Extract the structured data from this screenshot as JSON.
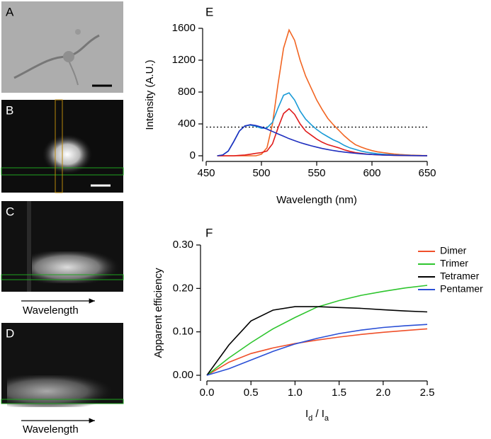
{
  "panels": {
    "labels": [
      "A",
      "B",
      "C",
      "D"
    ],
    "arrow_label": "Wavelength"
  },
  "chart_data": [
    {
      "type": "line",
      "panel_label": "E",
      "x_label": "Wavelength (nm)",
      "y_label": "Intensity (A.U.)",
      "xlim": [
        450,
        650
      ],
      "xticks": [
        450,
        500,
        550,
        600,
        650
      ],
      "ylim": [
        0,
        1600
      ],
      "yticks": [
        0,
        400,
        800,
        1200,
        1600
      ],
      "reference_line": {
        "value": 360,
        "color": "#000000"
      },
      "x": [
        460,
        465,
        470,
        475,
        480,
        485,
        490,
        495,
        500,
        505,
        510,
        515,
        520,
        525,
        530,
        535,
        540,
        545,
        550,
        555,
        560,
        565,
        570,
        575,
        580,
        585,
        590,
        595,
        600,
        605,
        610,
        615,
        620,
        625,
        630,
        635,
        640,
        645,
        650
      ],
      "series": [
        {
          "color": "#f26522",
          "values": [
            0,
            0,
            0,
            0,
            0,
            0,
            0,
            0,
            20,
            100,
            400,
            900,
            1350,
            1580,
            1450,
            1200,
            1000,
            850,
            700,
            580,
            470,
            390,
            320,
            250,
            190,
            140,
            110,
            85,
            65,
            50,
            40,
            30,
            22,
            16,
            12,
            8,
            6,
            4,
            3
          ]
        },
        {
          "color": "#1a9bd7",
          "values": [
            0,
            10,
            60,
            180,
            310,
            375,
            385,
            370,
            345,
            350,
            420,
            600,
            760,
            790,
            700,
            560,
            460,
            390,
            330,
            280,
            240,
            200,
            170,
            130,
            100,
            80,
            60,
            45,
            35,
            25,
            20,
            15,
            10,
            8,
            6,
            4,
            3,
            2,
            1
          ]
        },
        {
          "color": "#e01b1b",
          "values": [
            0,
            0,
            0,
            0,
            5,
            10,
            20,
            30,
            40,
            60,
            150,
            350,
            530,
            590,
            520,
            400,
            310,
            260,
            210,
            170,
            140,
            120,
            100,
            75,
            55,
            40,
            30,
            22,
            16,
            12,
            9,
            7,
            5,
            4,
            3,
            2,
            2,
            1,
            1
          ]
        },
        {
          "color": "#1f2fbf",
          "values": [
            0,
            10,
            60,
            180,
            310,
            375,
            390,
            380,
            360,
            335,
            305,
            275,
            245,
            215,
            190,
            165,
            145,
            125,
            108,
            92,
            78,
            66,
            55,
            46,
            38,
            31,
            25,
            20,
            16,
            13,
            10,
            8,
            6,
            5,
            4,
            3,
            2,
            2,
            1
          ]
        }
      ]
    },
    {
      "type": "line",
      "panel_label": "F",
      "x_label": [
        "I",
        "d",
        " / I",
        "a"
      ],
      "y_label": "Apparent efficiency",
      "xlim": [
        0,
        2.5
      ],
      "xticks": [
        {
          "value": 0,
          "label": "0.0"
        },
        {
          "value": 0.5,
          "label": "0.5"
        },
        {
          "value": 1,
          "label": "1.0"
        },
        {
          "value": 1.5,
          "label": "1.5"
        },
        {
          "value": 2,
          "label": "2.0"
        },
        {
          "value": 2.5,
          "label": "2.5"
        }
      ],
      "ylim": [
        0,
        0.3
      ],
      "yticks": [
        {
          "value": 0,
          "label": "0.00"
        },
        {
          "value": 0.1,
          "label": "0.10"
        },
        {
          "value": 0.2,
          "label": "0.20"
        },
        {
          "value": 0.3,
          "label": "0.30"
        }
      ],
      "legend": "outside right",
      "x": [
        0,
        0.25,
        0.5,
        0.75,
        1,
        1.25,
        1.5,
        1.75,
        2,
        2.25,
        2.5
      ],
      "series": [
        {
          "name": "Dimer",
          "color": "#f0502a",
          "values": [
            0,
            0.03,
            0.05,
            0.063,
            0.073,
            0.081,
            0.088,
            0.094,
            0.099,
            0.103,
            0.107
          ]
        },
        {
          "name": "Trimer",
          "color": "#2ec52e",
          "values": [
            0,
            0.04,
            0.075,
            0.107,
            0.133,
            0.157,
            0.172,
            0.184,
            0.193,
            0.201,
            0.207
          ]
        },
        {
          "name": "Tetramer",
          "color": "#000000",
          "values": [
            0,
            0.07,
            0.125,
            0.15,
            0.158,
            0.158,
            0.156,
            0.154,
            0.151,
            0.148,
            0.146
          ]
        },
        {
          "name": "Pentamer",
          "color": "#2a4fd6",
          "values": [
            0,
            0.015,
            0.035,
            0.055,
            0.072,
            0.085,
            0.096,
            0.104,
            0.11,
            0.114,
            0.117
          ]
        }
      ]
    }
  ]
}
